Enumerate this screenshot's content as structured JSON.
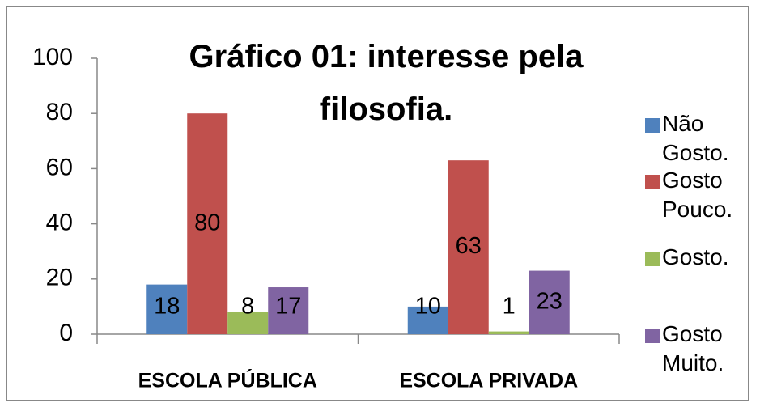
{
  "chart_data": {
    "type": "bar",
    "title": "Gráfico 01: interesse pela filosofia.",
    "categories": [
      "ESCOLA PÚBLICA",
      "ESCOLA PRIVADA"
    ],
    "series": [
      {
        "name": "Não Gosto.",
        "color": "#4f81bd",
        "values": [
          18,
          10
        ]
      },
      {
        "name": "Gosto Pouco.",
        "color": "#c0504d",
        "values": [
          80,
          63
        ]
      },
      {
        "name": "Gosto.",
        "color": "#9bbb59",
        "values": [
          8,
          1
        ]
      },
      {
        "name": "Gosto Muito.",
        "color": "#8064a2",
        "values": [
          17,
          23
        ]
      }
    ],
    "ylim": [
      0,
      100
    ],
    "yticks": [
      0,
      20,
      40,
      60,
      80,
      100
    ],
    "legend": "right"
  }
}
